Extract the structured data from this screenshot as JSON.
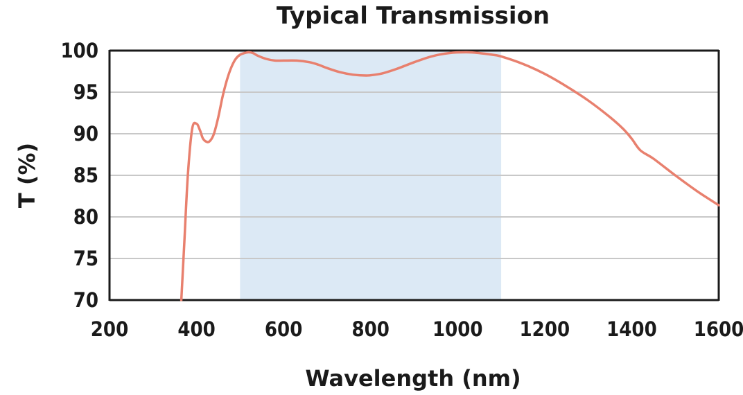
{
  "chart_data": {
    "type": "line",
    "title": "Typical Transmission",
    "xlabel": "Wavelength (nm)",
    "ylabel": "T (%)",
    "xlim": [
      200,
      1600
    ],
    "ylim": [
      70,
      100
    ],
    "x_ticks": [
      200,
      400,
      600,
      800,
      1000,
      1200,
      1400,
      1600
    ],
    "y_ticks": [
      70,
      75,
      80,
      85,
      90,
      95,
      100
    ],
    "x_tick_labels": [
      "200",
      "400",
      "600",
      "800",
      "1000",
      "1200",
      "1400",
      "1600"
    ],
    "y_tick_labels": [
      "70",
      "75",
      "80",
      "85",
      "90",
      "95",
      "100"
    ],
    "grid": "horizontal",
    "legend": "none",
    "shaded_band": {
      "x_start": 500,
      "x_end": 1100,
      "color": "#dce9f5"
    },
    "series": [
      {
        "color": "#e8806e",
        "x": [
          365,
          372,
          380,
          390,
          400,
          408,
          415,
          425,
          432,
          440,
          450,
          460,
          470,
          480,
          490,
          500,
          510,
          520,
          530,
          540,
          560,
          580,
          600,
          630,
          660,
          680,
          700,
          730,
          760,
          790,
          810,
          830,
          860,
          900,
          940,
          980,
          1020,
          1050,
          1080,
          1100,
          1150,
          1200,
          1250,
          1300,
          1350,
          1380,
          1400,
          1420,
          1450,
          1500,
          1550,
          1600
        ],
        "y": [
          70,
          77,
          85,
          90.6,
          91.2,
          90.4,
          89.4,
          89.0,
          89.2,
          90.0,
          92.0,
          94.5,
          96.5,
          98.0,
          99.0,
          99.5,
          99.7,
          99.8,
          99.7,
          99.4,
          99.0,
          98.8,
          98.8,
          98.8,
          98.6,
          98.3,
          97.9,
          97.4,
          97.1,
          97.0,
          97.1,
          97.3,
          97.8,
          98.6,
          99.3,
          99.7,
          99.8,
          99.7,
          99.5,
          99.3,
          98.4,
          97.2,
          95.7,
          94.0,
          92.0,
          90.6,
          89.4,
          88.0,
          87.0,
          85.0,
          83.1,
          81.4
        ]
      }
    ]
  }
}
